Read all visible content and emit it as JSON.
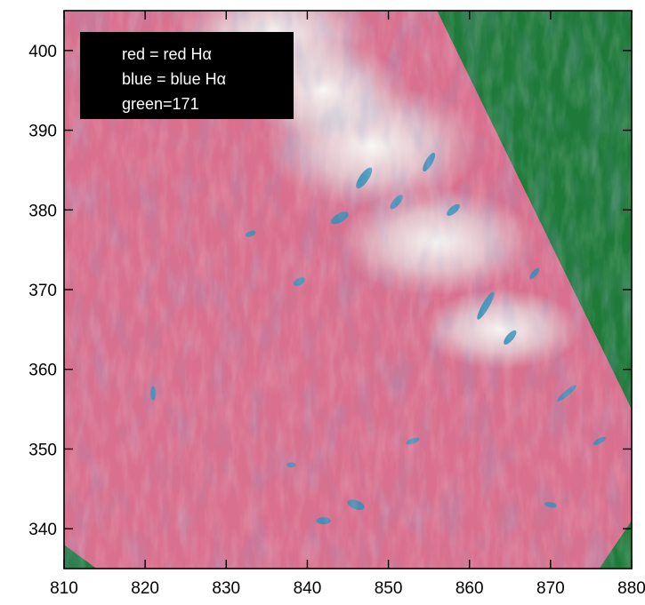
{
  "chart_data": {
    "type": "heatmap",
    "title": "",
    "xlabel": "",
    "ylabel": "",
    "xlim": [
      810,
      880
    ],
    "ylim": [
      335,
      405
    ],
    "x_ticks": [
      810,
      820,
      830,
      840,
      850,
      860,
      870,
      880
    ],
    "x_tick_labels": [
      "810",
      "820",
      "830",
      "840",
      "850",
      "860",
      "870",
      "880"
    ],
    "y_ticks": [
      340,
      350,
      360,
      370,
      380,
      390,
      400
    ],
    "y_tick_labels": [
      "340",
      "350",
      "360",
      "370",
      "380",
      "390",
      "400"
    ],
    "legend": {
      "placement": "top-left",
      "entries": [
        "red = red Hα",
        "blue = blue Hα",
        "green=171"
      ]
    },
    "composite_channels": {
      "red": "red Hα",
      "blue": "blue Hα",
      "green": "171"
    },
    "colors": {
      "dominant_pink": "#d9708f",
      "background_green": "#1f7a3a",
      "cyan_feature": "#2f8fb8",
      "bright_white": "#f4f6f2"
    },
    "field_of_view_edge": [
      [
        856,
        405
      ],
      [
        880,
        355
      ]
    ]
  }
}
